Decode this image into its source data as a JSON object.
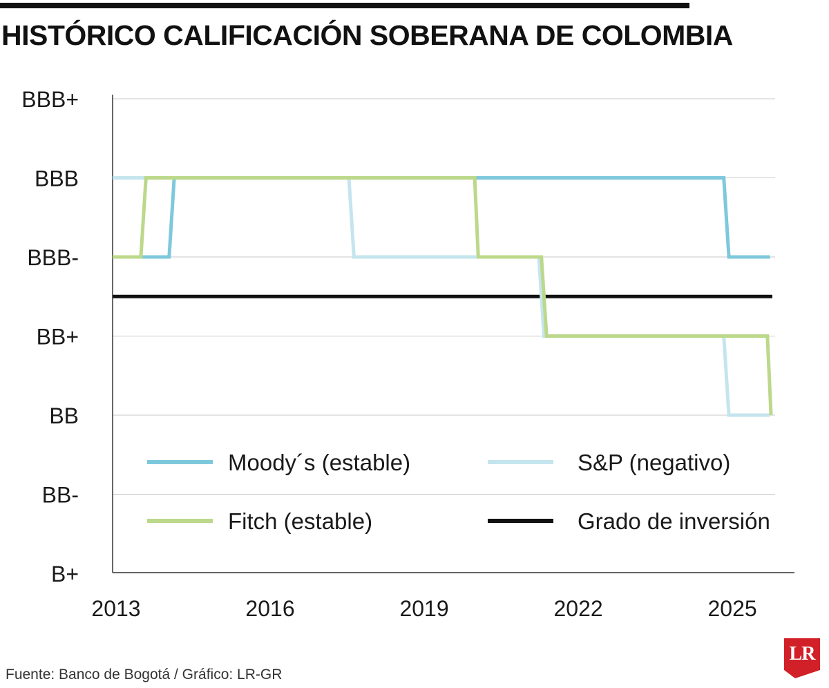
{
  "title": "HISTÓRICO CALIFICACIÓN SOBERANA DE COLOMBIA",
  "source": "Fuente: Banco de Bogotá / Gráfico: LR-GR",
  "logo_text": "LR",
  "colors": {
    "moodys": "#7ec8dc",
    "sp": "#c5e5ee",
    "fitch": "#bcd88a",
    "investment_grade": "#111111",
    "grid": "#c8c8c8",
    "axis": "#333333",
    "logo": "#d12027"
  },
  "chart_data": {
    "type": "line",
    "step": true,
    "x_ticks": [
      "2013",
      "2016",
      "2019",
      "2022",
      "2025"
    ],
    "y_ticks": [
      "B+",
      "BB-",
      "BB",
      "BB+",
      "BBB-",
      "BBB",
      "BBB+"
    ],
    "xlim": [
      2013,
      2025.9
    ],
    "grid": "horizontal",
    "legend_position": "inside, bottom",
    "series": [
      {
        "key": "moodys",
        "name": "Moody´s (estable)",
        "points": [
          [
            2013.0,
            "BBB-"
          ],
          [
            2014.1,
            "BBB-"
          ],
          [
            2014.2,
            "BBB"
          ],
          [
            2024.9,
            "BBB"
          ],
          [
            2025.0,
            "BBB-"
          ],
          [
            2025.8,
            "BBB-"
          ]
        ]
      },
      {
        "key": "sp",
        "name": "S&P (negativo)",
        "points": [
          [
            2013.0,
            "BBB"
          ],
          [
            2017.6,
            "BBB"
          ],
          [
            2017.7,
            "BBB-"
          ],
          [
            2021.3,
            "BBB-"
          ],
          [
            2021.4,
            "BB+"
          ],
          [
            2024.9,
            "BB+"
          ],
          [
            2025.0,
            "BB"
          ],
          [
            2025.8,
            "BB"
          ]
        ]
      },
      {
        "key": "fitch",
        "name": "Fitch (estable)",
        "points": [
          [
            2013.0,
            "BBB-"
          ],
          [
            2013.55,
            "BBB-"
          ],
          [
            2013.65,
            "BBB"
          ],
          [
            2020.05,
            "BBB"
          ],
          [
            2020.12,
            "BBB-"
          ],
          [
            2021.35,
            "BBB-"
          ],
          [
            2021.45,
            "BB+"
          ],
          [
            2025.75,
            "BB+"
          ],
          [
            2025.82,
            "BB"
          ]
        ]
      },
      {
        "key": "investment_grade",
        "name": "Grado de inversión",
        "threshold_between": [
          "BB+",
          "BBB-"
        ]
      }
    ]
  }
}
